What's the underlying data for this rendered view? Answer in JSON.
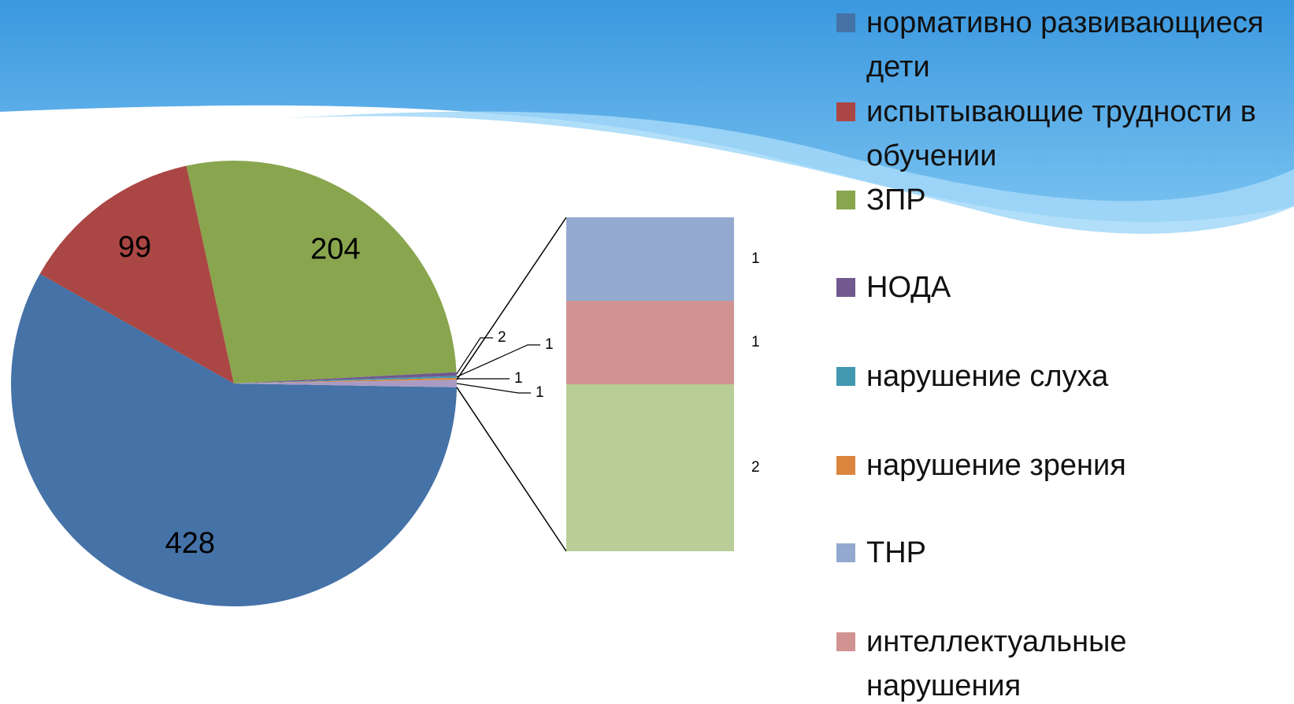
{
  "chart_data": {
    "type": "pie-of-bar",
    "categories": [
      "нормативно развивающиеся дети",
      "испытывающие трудности в обучении",
      "ЗПР",
      "НОДА",
      "нарушение слуха",
      "нарушение зрения",
      "ТНР",
      "интеллектуальные нарушения",
      null
    ],
    "values": [
      428,
      99,
      204,
      2,
      1,
      1,
      1,
      1,
      2
    ],
    "colors": [
      "#4572a7",
      "#aa4643",
      "#89a54e",
      "#71588f",
      "#4198af",
      "#db843d",
      "#93a9cf",
      "#d19392",
      "#b9cd96"
    ],
    "bar_count": 3,
    "other_label": "1"
  }
}
